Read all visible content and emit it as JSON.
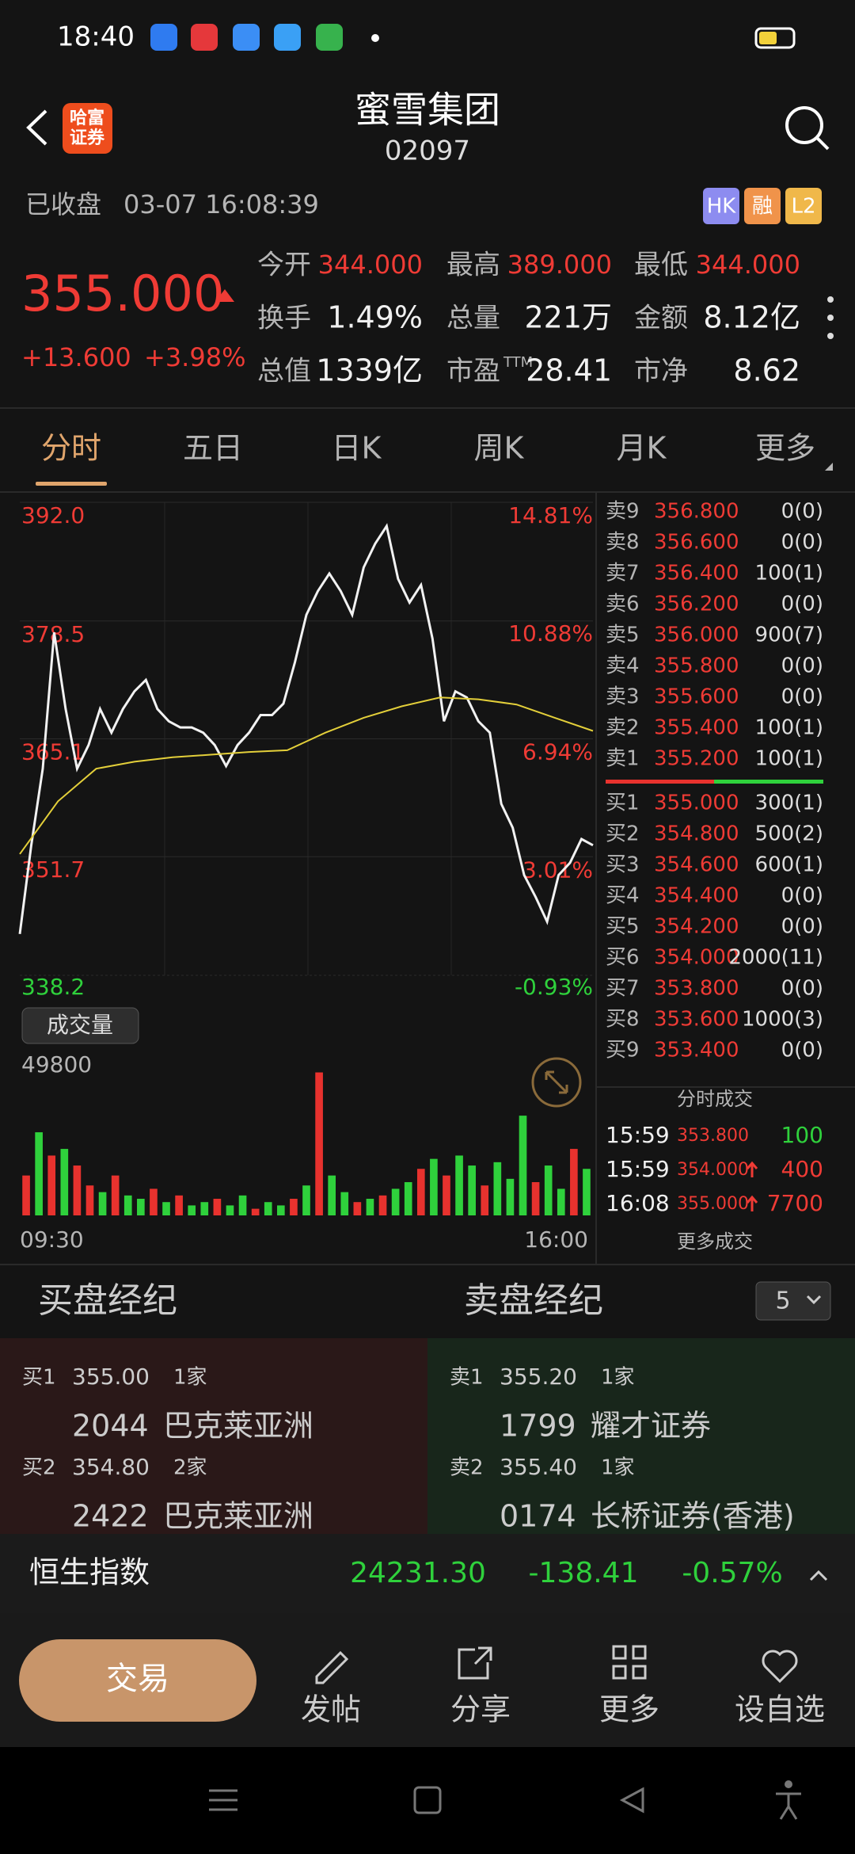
{
  "status_bar": {
    "time": "18:40"
  },
  "header": {
    "logo": [
      "哈富",
      "证券"
    ],
    "title": "蜜雪集团",
    "code": "02097"
  },
  "market_status": {
    "state": "已收盘",
    "time": "03-07 16:08:39",
    "badges": [
      "HK",
      "融",
      "L2"
    ]
  },
  "quote": {
    "price": "355.000",
    "change": "+13.600",
    "change_pct": "+3.98%",
    "stats": [
      {
        "label": "今开",
        "value": "344.000"
      },
      {
        "label": "最高",
        "value": "389.000"
      },
      {
        "label": "最低",
        "value": "344.000"
      },
      {
        "label": "换手",
        "value": "1.49%"
      },
      {
        "label": "总量",
        "value": "221万"
      },
      {
        "label": "金额",
        "value": "8.12亿"
      },
      {
        "label": "总值",
        "value": "1339亿"
      },
      {
        "label": "市盈",
        "sup": "TTM",
        "value": "28.41"
      },
      {
        "label": "市净",
        "value": "8.62"
      }
    ]
  },
  "tabs": {
    "items": [
      "分时",
      "五日",
      "日K",
      "周K",
      "月K",
      "更多"
    ],
    "active": 0
  },
  "chart": {
    "type": "line",
    "ylim": [
      338.2,
      392
    ],
    "yticks": [
      {
        "value": 392,
        "label": "392.0"
      },
      378.5,
      365.1,
      351.7,
      338.2
    ],
    "y2lim": [
      -0.93,
      14.81
    ],
    "y2ticks": [
      {
        "value": 14.81,
        "label": "14.81%"
      },
      {
        "value": 10.88,
        "label": "10.88%"
      },
      {
        "value": 6.94,
        "label": "6.94%"
      },
      {
        "value": 3.01,
        "label": "3.01%"
      },
      {
        "value": -0.93,
        "label": "-0.93%"
      }
    ],
    "x_labels": [
      "09:30",
      "16:00"
    ],
    "series": [
      {
        "color": "#f2f2f2",
        "values": [
          342.9,
          353.0,
          361.7,
          377.2,
          368.5,
          361.7,
          364.4,
          368.5,
          365.8,
          368.5,
          370.5,
          371.8,
          368.5,
          367.1,
          366.4,
          366.4,
          365.8,
          364.4,
          362.0,
          364.4,
          365.8,
          367.8,
          367.8,
          369.1,
          373.8,
          379.2,
          381.9,
          383.9,
          381.9,
          379.2,
          384.6,
          387.3,
          389.3,
          383.3,
          380.6,
          382.6,
          376.5,
          367.1,
          370.5,
          369.8,
          367.1,
          365.8,
          357.7,
          355.0,
          349.6,
          347.1,
          344.3,
          349.6,
          351.0,
          353.7,
          353.0
        ]
      },
      {
        "color": "#e3cf3a",
        "values": [
          352.0,
          358.0,
          361.7,
          362.5,
          363.0,
          363.3,
          363.6,
          363.8,
          365.8,
          367.5,
          368.8,
          369.8,
          369.6,
          369.0,
          367.5,
          366.0
        ]
      }
    ]
  },
  "volume": {
    "type": "bar",
    "label": "成交量",
    "ylim": [
      0,
      49800
    ],
    "yticks": [
      49800
    ],
    "values": [
      12000,
      25000,
      18000,
      20000,
      15000,
      9000,
      7000,
      12000,
      6000,
      5000,
      8000,
      4000,
      6000,
      3000,
      4000,
      5000,
      3000,
      6000,
      2000,
      4000,
      3000,
      5000,
      9000,
      43000,
      12000,
      7000,
      4000,
      5000,
      6000,
      8000,
      10000,
      14000,
      17000,
      12000,
      18000,
      15000,
      9000,
      16000,
      11000,
      30000,
      10000,
      15000,
      8000,
      20000,
      14000
    ],
    "colors": [
      "#e8322e",
      "#2fd13c",
      "#e8322e",
      "#2fd13c",
      "#e8322e",
      "#e8322e",
      "#2fd13c",
      "#e8322e",
      "#2fd13c",
      "#2fd13c",
      "#e8322e",
      "#2fd13c",
      "#e8322e",
      "#2fd13c",
      "#2fd13c",
      "#e8322e",
      "#2fd13c",
      "#2fd13c",
      "#e8322e",
      "#2fd13c",
      "#2fd13c",
      "#e8322e",
      "#2fd13c",
      "#e8322e",
      "#2fd13c",
      "#2fd13c",
      "#e8322e",
      "#2fd13c",
      "#e8322e",
      "#2fd13c",
      "#2fd13c",
      "#e8322e",
      "#2fd13c",
      "#e8322e",
      "#2fd13c",
      "#2fd13c",
      "#e8322e",
      "#2fd13c",
      "#2fd13c",
      "#2fd13c",
      "#e8322e",
      "#2fd13c",
      "#2fd13c",
      "#e8322e",
      "#2fd13c"
    ]
  },
  "order_book": {
    "asks": [
      [
        "卖9",
        "356.800",
        "0(0)"
      ],
      [
        "卖8",
        "356.600",
        "0(0)"
      ],
      [
        "卖7",
        "356.400",
        "100(1)"
      ],
      [
        "卖6",
        "356.200",
        "0(0)"
      ],
      [
        "卖5",
        "356.000",
        "900(7)"
      ],
      [
        "卖4",
        "355.800",
        "0(0)"
      ],
      [
        "卖3",
        "355.600",
        "0(0)"
      ],
      [
        "卖2",
        "355.400",
        "100(1)"
      ],
      [
        "卖1",
        "355.200",
        "100(1)"
      ]
    ],
    "bids": [
      [
        "买1",
        "355.000",
        "300(1)"
      ],
      [
        "买2",
        "354.800",
        "500(2)"
      ],
      [
        "买3",
        "354.600",
        "600(1)"
      ],
      [
        "买4",
        "354.400",
        "0(0)"
      ],
      [
        "买5",
        "354.200",
        "0(0)"
      ],
      [
        "买6",
        "354.000",
        "2000(11)"
      ],
      [
        "买7",
        "353.800",
        "0(0)"
      ],
      [
        "买8",
        "353.600",
        "1000(3)"
      ],
      [
        "买9",
        "353.400",
        "0(0)"
      ]
    ]
  },
  "trades": {
    "title": "分时成交",
    "rows": [
      {
        "time": "15:59",
        "price": "353.800",
        "qty": "100",
        "side": "sell"
      },
      {
        "time": "15:59",
        "price": "354.000",
        "qty": "400",
        "side": "buy"
      },
      {
        "time": "16:08",
        "price": "355.000",
        "qty": "7700",
        "side": "buy"
      }
    ],
    "more": "更多成交"
  },
  "brokers": {
    "buy_title": "买盘经纪",
    "sell_title": "卖盘经纪",
    "depth": "5",
    "buy": [
      {
        "level": "买1",
        "price": "355.00",
        "count": "1家",
        "broker_id": "2044",
        "broker": "巴克莱亚洲"
      },
      {
        "level": "买2",
        "price": "354.80",
        "count": "2家",
        "broker_id": "2422",
        "broker": "巴克莱亚洲"
      }
    ],
    "sell": [
      {
        "level": "卖1",
        "price": "355.20",
        "count": "1家",
        "broker_id": "1799",
        "broker": "耀才证券"
      },
      {
        "level": "卖2",
        "price": "355.40",
        "count": "1家",
        "broker_id": "0174",
        "broker": "长桥证券(香港)"
      }
    ]
  },
  "index_bar": {
    "name": "恒生指数",
    "value": "24231.30",
    "change": "-138.41",
    "change_pct": "-0.57%"
  },
  "toolbar": {
    "trade": "交易",
    "actions": [
      "发帖",
      "分享",
      "更多",
      "设自选"
    ]
  }
}
